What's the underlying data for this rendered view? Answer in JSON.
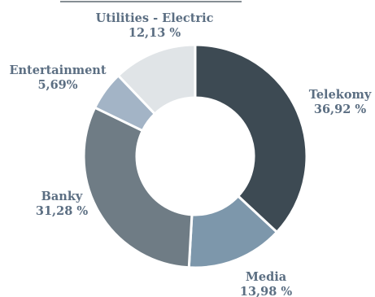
{
  "chart_data": {
    "type": "pie",
    "donut": true,
    "title": "",
    "slices": [
      {
        "label": "Telekomy",
        "value_label": "36,92 %",
        "value": 36.92,
        "color": "#3d4a53"
      },
      {
        "label": "Media",
        "value_label": "13,98 %",
        "value": 13.98,
        "color": "#7d97ab"
      },
      {
        "label": "Banky",
        "value_label": "31,28 %",
        "value": 31.28,
        "color": "#6f7c85"
      },
      {
        "label": "Entertainment",
        "value_label": "5,69%",
        "value": 5.69,
        "color": "#a3b4c6"
      },
      {
        "label": "Utilities - Electric",
        "value_label": "12,13 %",
        "value": 12.13,
        "color": "#e0e4e7"
      }
    ],
    "label_color": "#5b6e82",
    "legend": "none"
  }
}
